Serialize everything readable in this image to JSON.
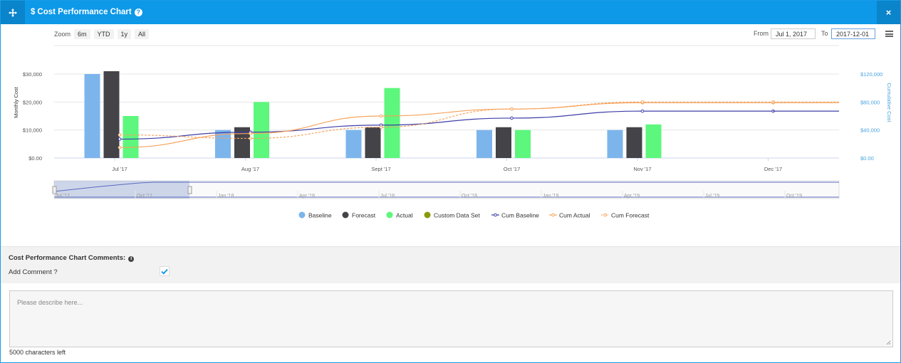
{
  "window": {
    "title": "Cost Performance Chart",
    "move_icon": "move-arrows-icon",
    "help_icon": "question-circle-icon",
    "help_glyph": "?",
    "close_icon": "close-icon",
    "close_glyph": "×",
    "title_prefix": "$"
  },
  "toolbar": {
    "zoom_label": "Zoom",
    "zoom_options": [
      "6m",
      "YTD",
      "1y",
      "All"
    ],
    "from_label": "From",
    "from_value": "Jul 1, 2017",
    "to_label": "To",
    "to_value": "2017-12-01",
    "menu_icon": "hamburger-menu-icon"
  },
  "chart_data": {
    "type": "bar",
    "categories": [
      "Jul '17",
      "Aug '17",
      "Sept '17",
      "Oct '17",
      "Nov '17",
      "Dec '17"
    ],
    "ylabel": "Monthly Cost",
    "y2label": "Cumulative Cost",
    "yticks": [
      "$0.00",
      "$10,000",
      "$20,000",
      "$30,000"
    ],
    "y2ticks": [
      "$0.00",
      "$40,000",
      "$80,000",
      "$120,000"
    ],
    "ylim": [
      0,
      30000
    ],
    "y2lim": [
      0,
      120000
    ],
    "series": [
      {
        "name": "Baseline",
        "kind": "bar",
        "color": "#7cb5ec",
        "values": [
          30000,
          10000,
          10000,
          10000,
          10000,
          null
        ]
      },
      {
        "name": "Forecast",
        "kind": "bar",
        "color": "#434348",
        "values": [
          31000,
          11000,
          11000,
          11000,
          11000,
          null
        ]
      },
      {
        "name": "Actual",
        "kind": "bar",
        "color": "#5cf77c",
        "values": [
          15000,
          20000,
          25000,
          10000,
          12000,
          null
        ]
      },
      {
        "name": "Custom Data Set",
        "kind": "bar",
        "color": "#8a9a0a",
        "values": [
          null,
          null,
          null,
          null,
          null,
          null
        ]
      },
      {
        "name": "Cum Baseline",
        "kind": "line",
        "color": "#3d3da8",
        "values": [
          27000,
          37000,
          47000,
          57000,
          67000,
          67000
        ]
      },
      {
        "name": "Cum Actual",
        "kind": "line",
        "color": "#f7a35c",
        "values": [
          15000,
          35000,
          60000,
          70000,
          79000,
          79000
        ]
      },
      {
        "name": "Cum Forecast",
        "kind": "line",
        "color": "#f7a35c",
        "dashed": true,
        "values": [
          33000,
          28000,
          44000,
          70000,
          80000,
          80000
        ]
      }
    ],
    "navigator": {
      "labels": [
        "Jul '17",
        "Oct '17",
        "Jan '18",
        "Apr '18",
        "Jul '18",
        "Oct '18",
        "Jan '19",
        "Apr '19",
        "Jul '19",
        "Oct '19"
      ],
      "selected_start": "Jul '17",
      "selected_end": "Dec '17"
    }
  },
  "comments": {
    "title": "Cost Performance Chart Comments:",
    "info_icon": "info-circle-icon",
    "add_comment_label": "Add Comment ?",
    "add_comment_checked": true,
    "check_icon": "checkmark-icon",
    "placeholder": "Please describe here...",
    "chars_left": "5000 characters left"
  }
}
